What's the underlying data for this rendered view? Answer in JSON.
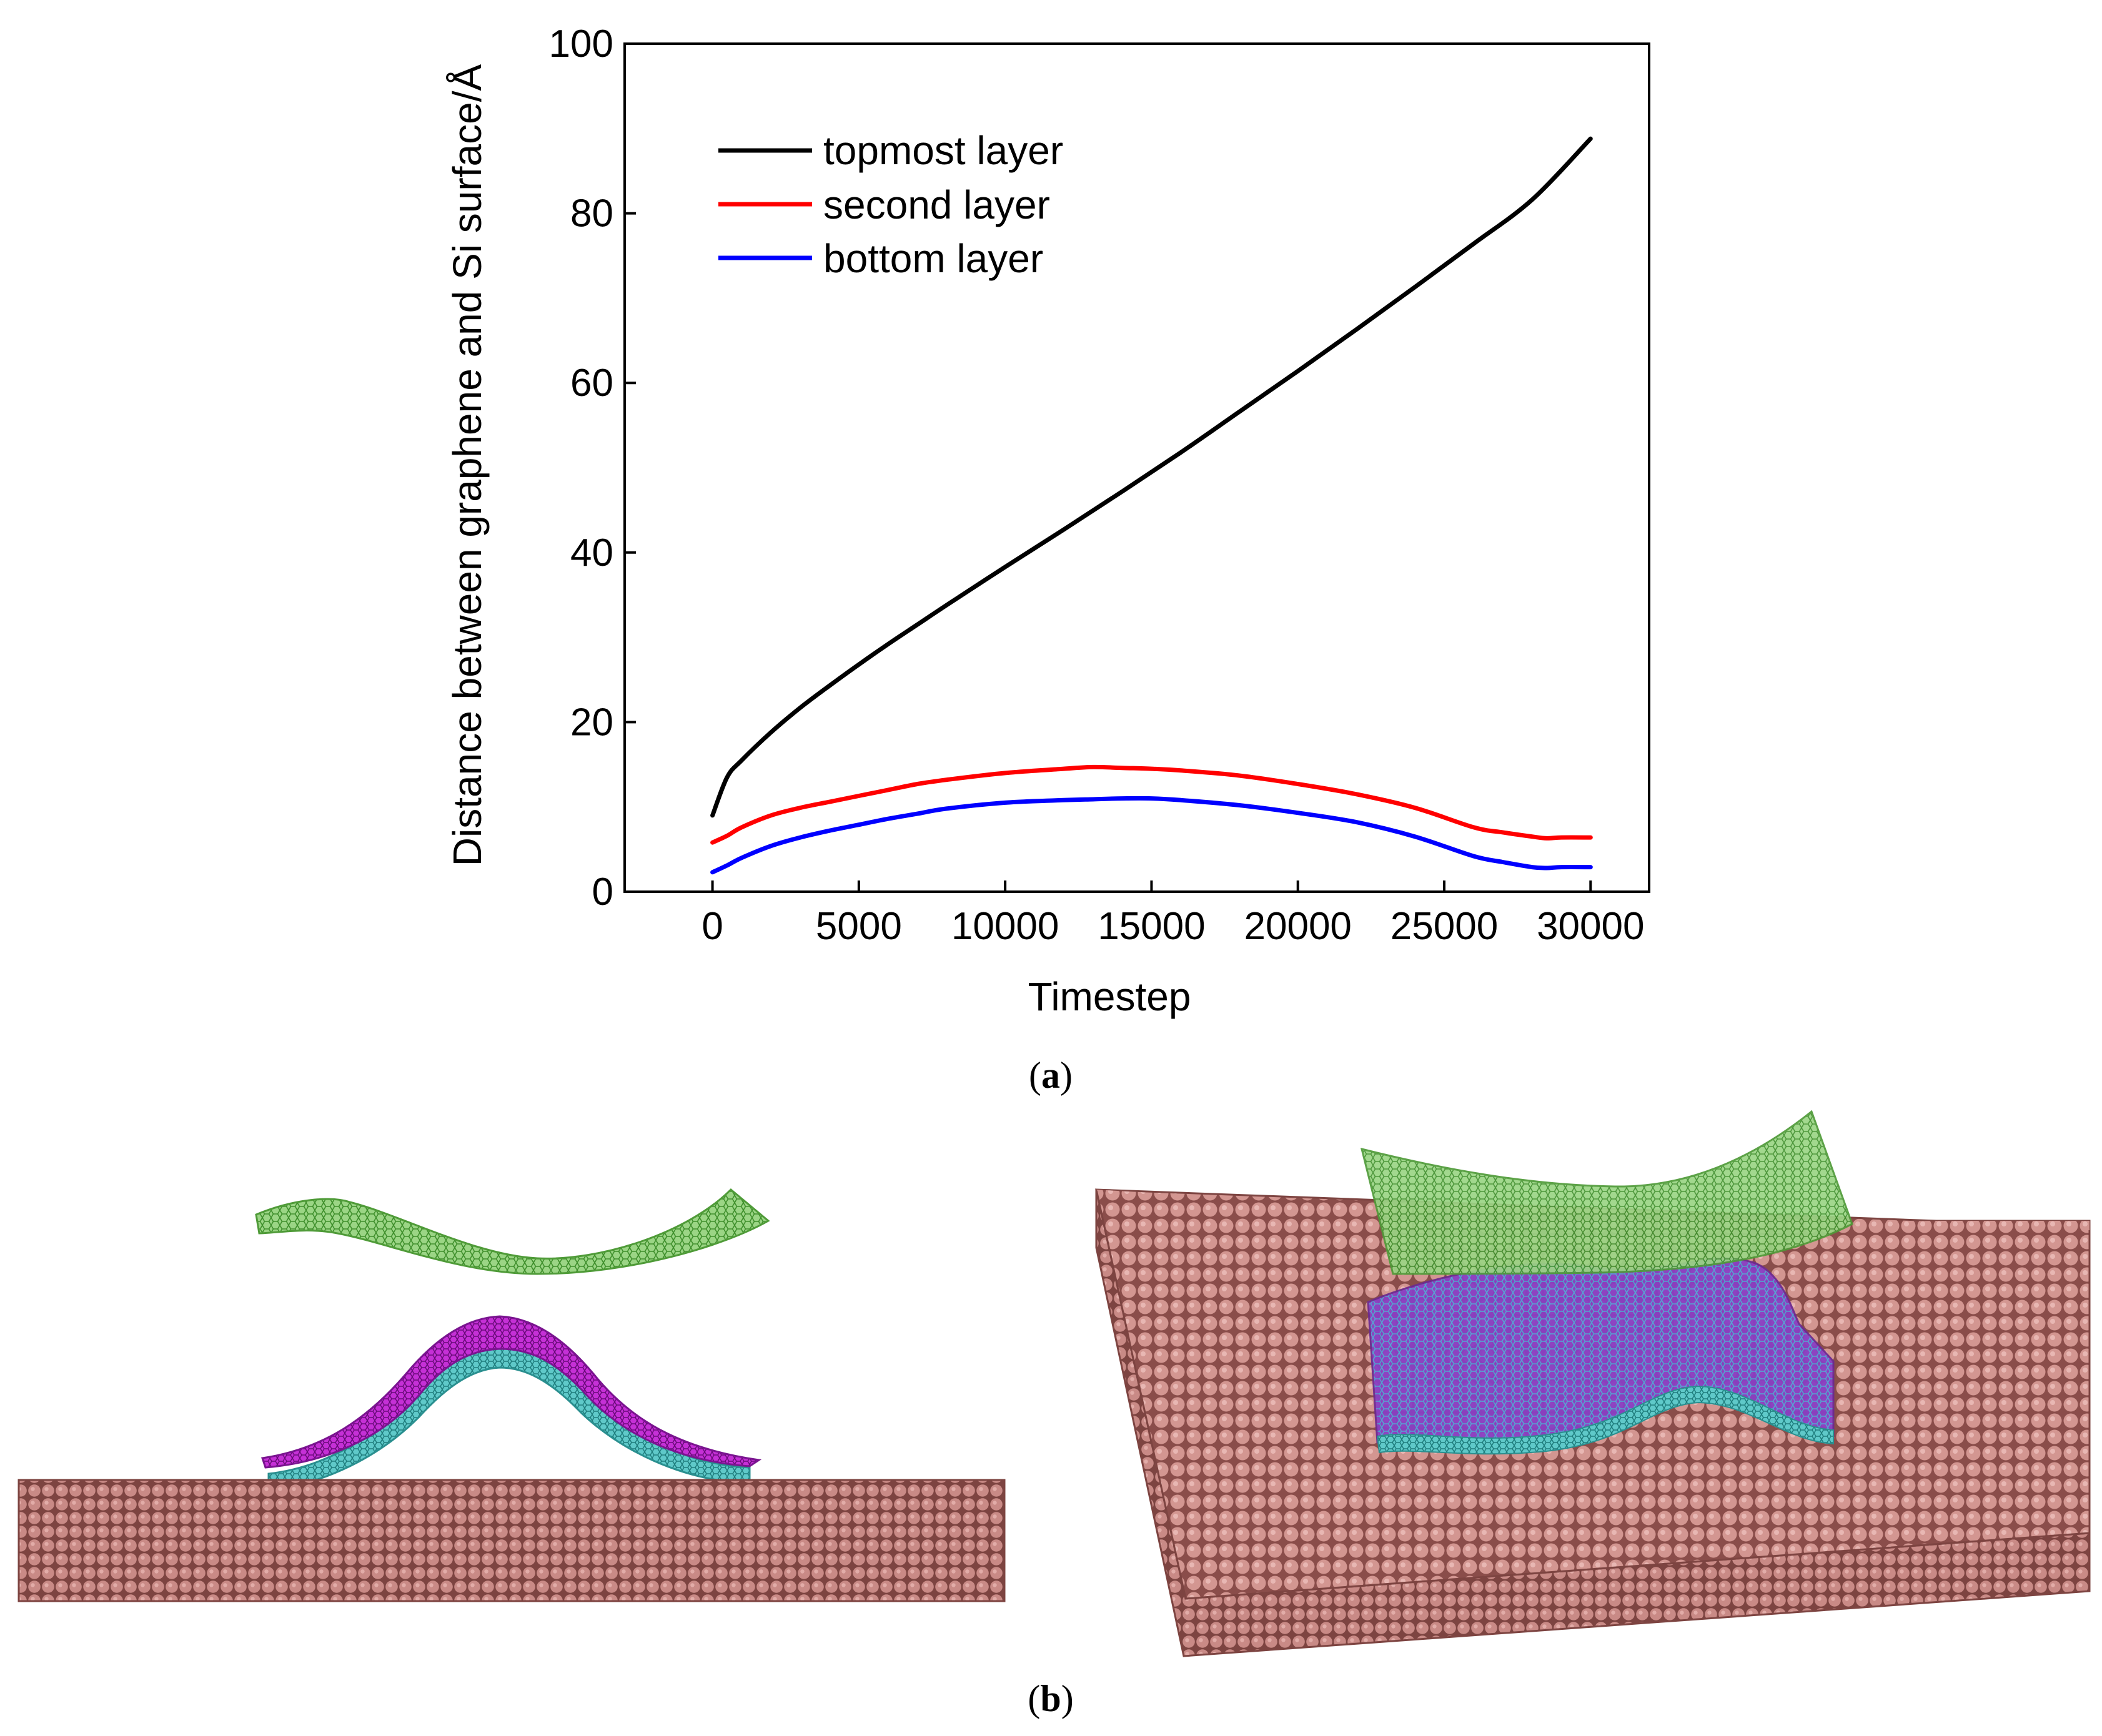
{
  "chart_data": {
    "type": "line",
    "title": "",
    "xlabel": "Timestep",
    "ylabel": "Distance between graphene and Si surface/Å",
    "xlim": [
      -3000,
      32000
    ],
    "ylim": [
      0,
      100
    ],
    "xticks": [
      0,
      5000,
      10000,
      15000,
      20000,
      25000,
      30000
    ],
    "yticks": [
      0,
      20,
      40,
      60,
      80,
      100
    ],
    "xtick_labels": [
      "0",
      "5000",
      "10000",
      "15000",
      "20000",
      "25000",
      "30000"
    ],
    "ytick_labels": [
      "0",
      "20",
      "40",
      "60",
      "80",
      "100"
    ],
    "legend_position": "top-left",
    "series": [
      {
        "name": "topmost layer",
        "color": "#000000",
        "x": [
          0,
          500,
          1000,
          2000,
          3000,
          4000,
          5000,
          6000,
          7000,
          8000,
          10000,
          12000,
          14000,
          16000,
          18000,
          20000,
          22000,
          24000,
          26000,
          28000,
          30000
        ],
        "values": [
          9.0,
          13.5,
          15.5,
          18.8,
          21.7,
          24.3,
          26.8,
          29.2,
          31.5,
          33.8,
          38.3,
          42.7,
          47.2,
          51.8,
          56.6,
          61.4,
          66.3,
          71.3,
          76.4,
          81.6,
          88.8
        ]
      },
      {
        "name": "second layer",
        "color": "#ff0000",
        "x": [
          0,
          500,
          1000,
          2000,
          3000,
          4000,
          5000,
          6000,
          7000,
          8000,
          10000,
          12000,
          13000,
          14000,
          15000,
          16000,
          18000,
          20000,
          22000,
          24000,
          26000,
          27000,
          28000,
          28500,
          29000,
          30000
        ],
        "values": [
          5.8,
          6.6,
          7.6,
          9.0,
          9.9,
          10.6,
          11.3,
          12.0,
          12.7,
          13.2,
          14.0,
          14.5,
          14.7,
          14.6,
          14.5,
          14.3,
          13.7,
          12.7,
          11.5,
          9.9,
          7.6,
          7.0,
          6.5,
          6.3,
          6.4,
          6.4
        ]
      },
      {
        "name": "bottom layer",
        "color": "#0000ff",
        "x": [
          0,
          500,
          1000,
          2000,
          3000,
          4000,
          5000,
          6000,
          7000,
          8000,
          10000,
          12000,
          13000,
          14000,
          15000,
          16000,
          18000,
          20000,
          22000,
          24000,
          26000,
          27000,
          28000,
          28500,
          29000,
          30000
        ],
        "values": [
          2.3,
          3.1,
          4.0,
          5.4,
          6.4,
          7.2,
          7.9,
          8.6,
          9.2,
          9.8,
          10.5,
          10.8,
          10.9,
          11.0,
          11.0,
          10.8,
          10.2,
          9.3,
          8.2,
          6.5,
          4.2,
          3.5,
          2.9,
          2.8,
          2.9,
          2.9
        ]
      }
    ]
  },
  "captions": {
    "a": "(a)",
    "a_letter": "a",
    "b": "(b)",
    "b_letter": "b"
  },
  "colors": {
    "silicon": "#c98a86",
    "silicon_dark": "#8a4d4a",
    "graphene_top": "#7cc262",
    "graphene_second": "#b61ac8",
    "graphene_bottom": "#3bb6b6"
  }
}
